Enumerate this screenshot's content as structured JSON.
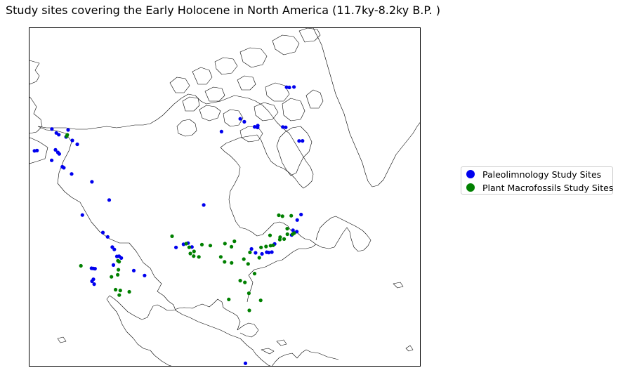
{
  "title": "Study sites covering the Early Holocene in North America (11.7ky-8.2ky B.P. )",
  "legend": [
    {
      "label": "Paleolimnology Study Sites",
      "color": "#0000ee"
    },
    {
      "label": "Plant Macrofossils Study Sites",
      "color": "#008000"
    }
  ],
  "map": {
    "projection": "lambert-conformal",
    "region": "North America",
    "basemap": "coastlines",
    "coast_color": "#000000"
  },
  "sites": {
    "paleolimnology": [
      {
        "lat": 70.3,
        "lon": -148.5
      },
      {
        "lat": 69.0,
        "lon": -155.0
      },
      {
        "lat": 68.7,
        "lon": -152.0
      },
      {
        "lat": 68.6,
        "lon": -150.5
      },
      {
        "lat": 68.8,
        "lon": -147.0
      },
      {
        "lat": 68.6,
        "lon": -143.5
      },
      {
        "lat": 68.2,
        "lon": -140.5
      },
      {
        "lat": 65.4,
        "lon": -147.0
      },
      {
        "lat": 65.1,
        "lon": -145.5
      },
      {
        "lat": 64.9,
        "lon": -144.6
      },
      {
        "lat": 63.3,
        "lon": -153.5
      },
      {
        "lat": 63.6,
        "lon": -152.8
      },
      {
        "lat": 63.0,
        "lon": -145.5
      },
      {
        "lat": 62.5,
        "lon": -140.5
      },
      {
        "lat": 62.4,
        "lon": -139.8
      },
      {
        "lat": 61.6,
        "lon": -136.0
      },
      {
        "lat": 61.0,
        "lon": -128.0
      },
      {
        "lat": 57.5,
        "lon": -120.5
      },
      {
        "lat": 53.0,
        "lon": -127.0
      },
      {
        "lat": 49.7,
        "lon": -120.0
      },
      {
        "lat": 48.8,
        "lon": -118.5
      },
      {
        "lat": 46.5,
        "lon": -116.8
      },
      {
        "lat": 46.0,
        "lon": -116.2
      },
      {
        "lat": 44.5,
        "lon": -114.8
      },
      {
        "lat": 44.1,
        "lon": -114.2
      },
      {
        "lat": 44.4,
        "lon": -115.3
      },
      {
        "lat": 42.3,
        "lon": -115.8
      },
      {
        "lat": 41.0,
        "lon": -120.6
      },
      {
        "lat": 41.0,
        "lon": -120.2
      },
      {
        "lat": 41.0,
        "lon": -119.8
      },
      {
        "lat": 38.5,
        "lon": -119.6
      },
      {
        "lat": 38.0,
        "lon": -119.8
      },
      {
        "lat": 37.4,
        "lon": -119.2
      },
      {
        "lat": 41.3,
        "lon": -111.0
      },
      {
        "lat": 40.2,
        "lon": -108.5
      },
      {
        "lat": 46.7,
        "lon": -100.8
      },
      {
        "lat": 47.3,
        "lon": -98.8
      },
      {
        "lat": 47.5,
        "lon": -97.6
      },
      {
        "lat": 46.5,
        "lon": -96.8
      },
      {
        "lat": 43.7,
        "lon": -82.8
      },
      {
        "lat": 42.6,
        "lon": -82.3
      },
      {
        "lat": 42.0,
        "lon": -81.0
      },
      {
        "lat": 42.1,
        "lon": -79.8
      },
      {
        "lat": 41.9,
        "lon": -79.4
      },
      {
        "lat": 41.8,
        "lon": -78.7
      },
      {
        "lat": 43.4,
        "lon": -77.1
      },
      {
        "lat": 45.0,
        "lon": -71.2
      },
      {
        "lat": 44.4,
        "lon": -70.6
      },
      {
        "lat": 46.8,
        "lon": -68.6
      },
      {
        "lat": 47.6,
        "lon": -66.8
      },
      {
        "lat": 44.1,
        "lon": -72.2
      },
      {
        "lat": 17.5,
        "lon": -92.3
      },
      {
        "lat": 19.0,
        "lon": -91.8
      },
      {
        "lat": 56.0,
        "lon": -90.8
      },
      {
        "lat": 71.0,
        "lon": -71.5
      },
      {
        "lat": 71.8,
        "lon": -59.0
      },
      {
        "lat": 70.9,
        "lon": -58.6
      },
      {
        "lat": 69.0,
        "lon": -56.8
      },
      {
        "lat": 68.9,
        "lon": -55.2
      },
      {
        "lat": 68.6,
        "lon": -56.0
      },
      {
        "lat": 65.9,
        "lon": -47.9
      },
      {
        "lat": 65.5,
        "lon": -47.2
      },
      {
        "lat": 61.7,
        "lon": -48.7
      },
      {
        "lat": 61.3,
        "lon": -47.8
      },
      {
        "lat": 70.8,
        "lon": -27.5
      },
      {
        "lat": 70.4,
        "lon": -27.0
      },
      {
        "lat": 69.8,
        "lon": -25.7
      }
    ],
    "plant_macrofossils": [
      {
        "lat": 69.3,
        "lon": -147.2
      },
      {
        "lat": 69.0,
        "lon": -147.0
      },
      {
        "lat": 41.2,
        "lon": -123.1
      },
      {
        "lat": 43.4,
        "lon": -114.9
      },
      {
        "lat": 43.2,
        "lon": -114.6
      },
      {
        "lat": 41.3,
        "lon": -114.5
      },
      {
        "lat": 36.5,
        "lon": -113.5
      },
      {
        "lat": 36.6,
        "lon": -114.5
      },
      {
        "lat": 35.4,
        "lon": -113.6
      },
      {
        "lat": 36.3,
        "lon": -111.6
      },
      {
        "lat": 40.1,
        "lon": -114.5
      },
      {
        "lat": 39.5,
        "lon": -115.8
      },
      {
        "lat": 49.4,
        "lon": -101.5
      },
      {
        "lat": 47.4,
        "lon": -98.1
      },
      {
        "lat": 46.5,
        "lon": -97.5
      },
      {
        "lat": 45.4,
        "lon": -96.5
      },
      {
        "lat": 44.3,
        "lon": -96.8
      },
      {
        "lat": 44.0,
        "lon": -95.6
      },
      {
        "lat": 45.0,
        "lon": -97.5
      },
      {
        "lat": 46.8,
        "lon": -94.2
      },
      {
        "lat": 46.3,
        "lon": -92.2
      },
      {
        "lat": 46.2,
        "lon": -88.5
      },
      {
        "lat": 46.3,
        "lon": -86.0
      },
      {
        "lat": 45.2,
        "lon": -87.2
      },
      {
        "lat": 43.3,
        "lon": -90.5
      },
      {
        "lat": 42.0,
        "lon": -90.0
      },
      {
        "lat": 41.5,
        "lon": -88.5
      },
      {
        "lat": 43.0,
        "lon": -83.5
      },
      {
        "lat": 43.5,
        "lon": -80.5
      },
      {
        "lat": 43.4,
        "lon": -79.3
      },
      {
        "lat": 43.3,
        "lon": -78.2
      },
      {
        "lat": 43.2,
        "lon": -77.6
      },
      {
        "lat": 44.0,
        "lon": -75.4
      },
      {
        "lat": 44.5,
        "lon": -75.0
      },
      {
        "lat": 43.8,
        "lon": -74.4
      },
      {
        "lat": 44.6,
        "lon": -73.0
      },
      {
        "lat": 44.2,
        "lon": -71.9
      },
      {
        "lat": 44.3,
        "lon": -71.4
      },
      {
        "lat": 45.8,
        "lon": -72.2
      },
      {
        "lat": 48.8,
        "lon": -71.3
      },
      {
        "lat": 49.3,
        "lon": -72.0
      },
      {
        "lat": 48.2,
        "lon": -69.2
      },
      {
        "lat": 45.6,
        "lon": -77.0
      },
      {
        "lat": 41.8,
        "lon": -85.5
      },
      {
        "lat": 41.3,
        "lon": -82.0
      },
      {
        "lat": 40.5,
        "lon": -85.0
      },
      {
        "lat": 38.0,
        "lon": -84.5
      },
      {
        "lat": 37.1,
        "lon": -88.0
      },
      {
        "lat": 36.5,
        "lon": -87.2
      },
      {
        "lat": 33.3,
        "lon": -91.5
      },
      {
        "lat": 33.9,
        "lon": -87.2
      },
      {
        "lat": 31.8,
        "lon": -85.5
      },
      {
        "lat": 30.1,
        "lon": -88.3
      }
    ]
  }
}
